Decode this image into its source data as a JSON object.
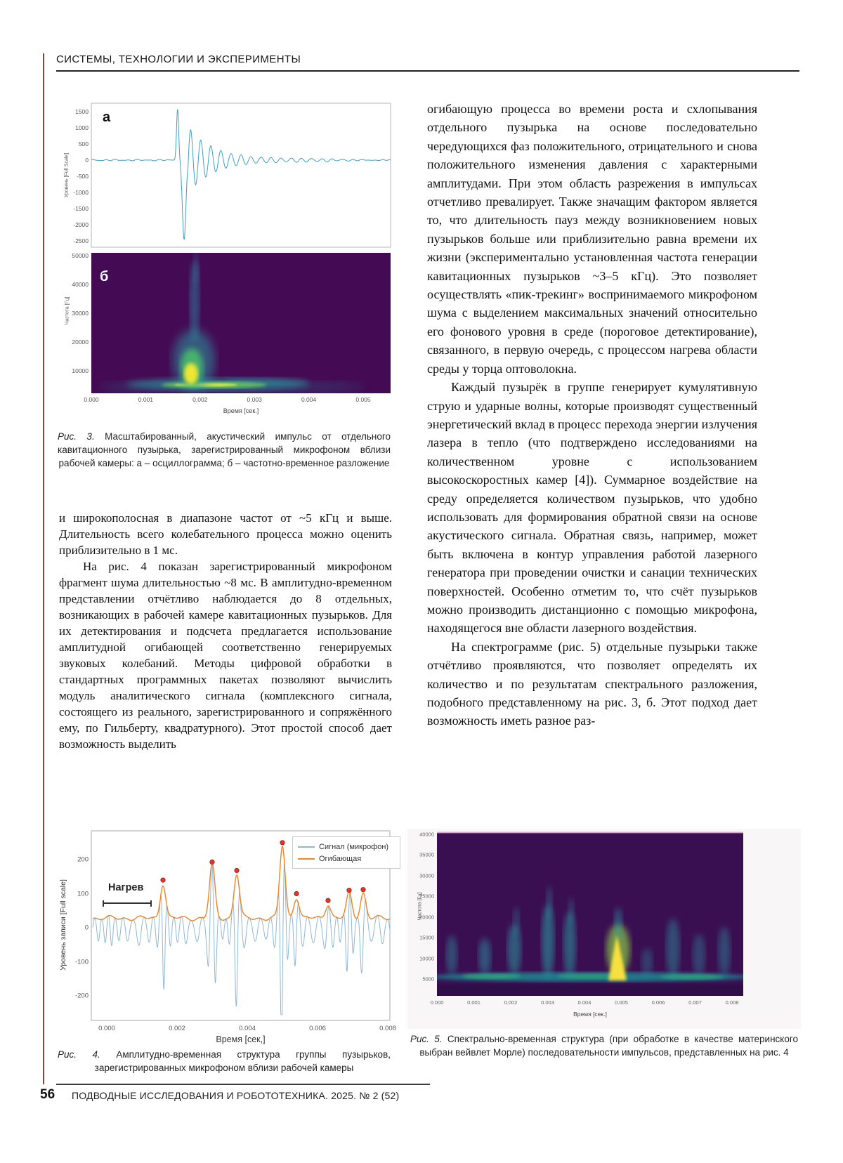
{
  "header": {
    "section_title": "СИСТЕМЫ, ТЕХНОЛОГИИ И ЭКСПЕРИМЕНТЫ"
  },
  "colors": {
    "waveform_blue": "#3f9fc6",
    "signal_blue": "#8fb8d8",
    "envelope_orange": "#ee8424",
    "peak_red": "#e0362c",
    "spectrogram_purple": "#440a54"
  },
  "figure3": {
    "panel_a": {
      "label": "а",
      "ylabel": "Уровень [Full Scale]",
      "yticks": [
        "1500",
        "1000",
        "500",
        "0",
        "-500",
        "-1000",
        "-1500",
        "-2000",
        "-2500"
      ]
    },
    "panel_b": {
      "label": "б",
      "ylabel": "Частота [Гц]",
      "yticks": [
        "50000",
        "40000",
        "30000",
        "20000",
        "10000"
      ],
      "xticks": [
        "0.000",
        "0.001",
        "0.002",
        "0.003",
        "0.004",
        "0.005"
      ],
      "xlabel": "Время [сек.]"
    },
    "caption_label": "Рис. 3.",
    "caption_text": " Масштабированный, акустический импульс от отдельного кавитационного пузырька, зарегистрированный микрофоном вблизи рабочей камеры: а – осциллограмма; б – частотно-временное разложение",
    "chart": {
      "type": "line",
      "peak_max": 1600,
      "peak_min": -2450,
      "peak_time_s": 0.0017,
      "xrange_s": [
        0,
        0.0055
      ]
    }
  },
  "figure4": {
    "legend": [
      "Сигнал (микрофон)",
      "Огибающая"
    ],
    "annotation": "Нагрев",
    "ylabel": "Уровень записи [Full scale]",
    "yticks": [
      "200",
      "100",
      "0",
      "-100",
      "-200"
    ],
    "xticks": [
      "0.000",
      "0.002",
      "0.004",
      "0.006",
      "0.008"
    ],
    "xlabel": "Время [сек,]",
    "caption_label": "Рис. 4.",
    "caption_text": " Амплитудно-временная структура группы пузырьков, зарегистрированных микрофоном вблизи рабочей камеры",
    "peaks": {
      "t": [
        0.0016,
        0.003,
        0.0037,
        0.005,
        0.0054,
        0.0063,
        0.0069,
        0.0073
      ],
      "level": [
        140,
        193,
        168,
        250,
        100,
        80,
        110,
        112
      ]
    }
  },
  "figure5": {
    "ylabel": "Частота [Гц]",
    "yticks": [
      "40000",
      "35000",
      "30000",
      "25000",
      "20000",
      "15000",
      "10000",
      "5000"
    ],
    "xticks": [
      "0.000",
      "0.001",
      "0.002",
      "0.003",
      "0.004",
      "0.005",
      "0.006",
      "0.007",
      "0.008"
    ],
    "xlabel": "Время [сек.]",
    "caption_label": "Рис. 5.",
    "caption_text": " Спектрально-временная структура (при обработке в качестве материнского выбран вейвлет Морле) последовательности импульсов, представленных на рис. 4",
    "chart": {
      "type": "heatmap",
      "plume_times_s": [
        0.0004,
        0.0013,
        0.0021,
        0.003,
        0.0036,
        0.0049,
        0.0057,
        0.0064,
        0.0071,
        0.0078
      ],
      "bright_plume_time_s": 0.0049
    }
  },
  "left_column": {
    "paragraphs": [
      "и широкополосная в диапазоне частот от ~5 кГц и выше. Длительность всего колебательного процесса можно оценить приблизительно в 1 мс.",
      "На рис. 4 показан зарегистрированный микрофоном фрагмент шума длительностью ~8 мс. В амплитудно-временном представлении отчётливо наблюдается до 8 отдельных, возникающих в рабочей камере кавитационных пузырьков. Для их детектирования и подсчета предлагается использование амплитудной огибающей соответственно генерируемых звуковых колебаний. Методы цифровой обработки в стандартных программных пакетах позволяют вычислить модуль аналитического сигнала (комплексного сигнала, состоящего из реального, зарегистрированного и сопряжённого ему, по Гильберту, квадратурного). Этот простой способ дает возможность выделить"
    ]
  },
  "right_column": {
    "paragraphs": [
      "огибающую процесса во времени роста и схлопывания отдельного пузырька на основе последовательно чередующихся фаз положительного, отрицательного и снова положительного изменения давления с характерными амплитудами. При этом область разрежения в импульсах отчетливо превалирует. Также значащим фактором является то, что длительность пауз между возникновением новых пузырьков больше или приблизительно равна времени их жизни (экспериментально установленная частота генерации кавитационных пузырьков ~3–5 кГц). Это позволяет осуществлять «пик-трекинг» воспринимаемого микрофоном шума с выделением максимальных значений относительно его фонового уровня в среде (пороговое детектирование), связанного, в первую очередь, с процессом нагрева области среды у торца оптоволокна.",
      "Каждый пузырёк в группе генерирует кумулятивную струю и ударные волны, которые производят существенный энергетический вклад в процесс перехода энергии излучения лазера в тепло (что подтверждено исследованиями на количественном уровне с использованием высокоскоростных камер [4]). Суммарное воздействие на среду определяется количеством пузырьков, что удобно использовать для формирования обратной связи на основе акустического сигнала. Обратная связь, например, может быть включена в контур управления работой лазерного генератора при проведении очистки и санации технических поверхностей. Особенно отметим то, что счёт пузырьков можно производить дистанционно с помощью микрофона, находящегося вне области лазерного воздействия.",
      "На спектрограмме (рис. 5) отдельные пузырьки также отчётливо проявляются, что позволяет определять их количество и по результатам спектрального разложения, подобного представленному на рис. 3, б. Этот подход дает возможность иметь разное раз-"
    ]
  },
  "footer": {
    "page_number": "56",
    "journal_line": "ПОДВОДНЫЕ ИССЛЕДОВАНИЯ И РОБОТОТЕХНИКА. 2025. № 2 (52)"
  }
}
